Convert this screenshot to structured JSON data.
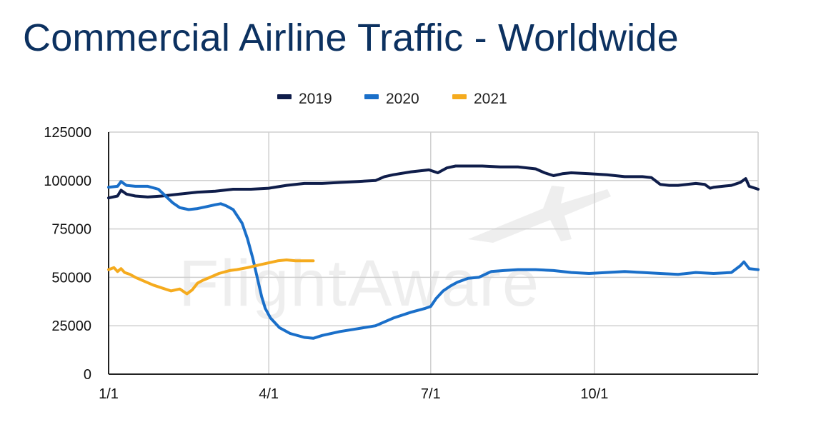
{
  "page": {
    "title": "Commercial Airline Traffic - Worldwide"
  },
  "watermark": "FlightAware",
  "colors": {
    "series2019": "#0f1d4a",
    "series2020": "#1a6fc9",
    "series2021": "#f5ab1e",
    "title": "#0c3160"
  },
  "chart_data": {
    "type": "line",
    "title": "",
    "xlabel": "",
    "ylabel": "",
    "legend_position": "top",
    "grid": true,
    "xlim": [
      0,
      365
    ],
    "ylim": [
      0,
      125000
    ],
    "x_ticks": [
      {
        "x": 0,
        "label": "1/1"
      },
      {
        "x": 90,
        "label": "4/1"
      },
      {
        "x": 181,
        "label": "7/1"
      },
      {
        "x": 273,
        "label": "10/1"
      }
    ],
    "y_ticks": [
      {
        "y": 0,
        "label": "0"
      },
      {
        "y": 25000,
        "label": "25000"
      },
      {
        "y": 50000,
        "label": "50000"
      },
      {
        "y": 75000,
        "label": "75000"
      },
      {
        "y": 100000,
        "label": "100000"
      },
      {
        "y": 125000,
        "label": "125000"
      }
    ],
    "series": [
      {
        "name": "2019",
        "x": [
          0,
          5,
          7,
          10,
          15,
          22,
          30,
          40,
          50,
          60,
          70,
          80,
          90,
          100,
          110,
          120,
          130,
          140,
          150,
          155,
          160,
          170,
          180,
          185,
          190,
          195,
          200,
          210,
          220,
          230,
          240,
          245,
          250,
          255,
          260,
          270,
          280,
          290,
          300,
          305,
          310,
          315,
          320,
          325,
          330,
          335,
          338,
          340,
          345,
          350,
          355,
          358,
          360,
          365
        ],
        "values": [
          91000,
          92000,
          95000,
          93000,
          92000,
          91500,
          92000,
          93000,
          94000,
          94500,
          95500,
          95500,
          96000,
          97500,
          98500,
          98500,
          99000,
          99500,
          100000,
          102000,
          103000,
          104500,
          105500,
          104000,
          106500,
          107500,
          107500,
          107500,
          107000,
          107000,
          106000,
          104000,
          102500,
          103500,
          104000,
          103500,
          103000,
          102000,
          102000,
          101500,
          98000,
          97500,
          97500,
          98000,
          98500,
          98000,
          96000,
          96500,
          97000,
          97500,
          99000,
          101000,
          97000,
          95500
        ]
      },
      {
        "name": "2020",
        "x": [
          0,
          5,
          7,
          10,
          15,
          22,
          28,
          32,
          36,
          40,
          45,
          50,
          55,
          60,
          63,
          66,
          70,
          75,
          78,
          81,
          84,
          86,
          88,
          91,
          96,
          102,
          110,
          115,
          120,
          130,
          140,
          150,
          160,
          170,
          178,
          181,
          184,
          188,
          192,
          196,
          202,
          208,
          215,
          222,
          230,
          240,
          250,
          260,
          270,
          280,
          290,
          300,
          310,
          320,
          330,
          340,
          350,
          355,
          357,
          360,
          365
        ],
        "values": [
          96500,
          97000,
          99500,
          97500,
          97000,
          97000,
          95500,
          92000,
          88500,
          86000,
          85000,
          85500,
          86500,
          87500,
          88000,
          87000,
          85000,
          78000,
          70000,
          60000,
          48000,
          40000,
          34000,
          29000,
          24000,
          21000,
          19000,
          18500,
          20000,
          22000,
          23500,
          25000,
          29000,
          32000,
          34000,
          35000,
          39000,
          43000,
          45500,
          47500,
          49500,
          50000,
          53000,
          53500,
          54000,
          54000,
          53500,
          52500,
          52000,
          52500,
          53000,
          52500,
          52000,
          51500,
          52500,
          52000,
          52500,
          56000,
          58000,
          54500,
          54000
        ]
      },
      {
        "name": "2021",
        "x": [
          0,
          3,
          5,
          7,
          9,
          12,
          15,
          20,
          25,
          30,
          35,
          40,
          44,
          47,
          50,
          53,
          57,
          62,
          68,
          72,
          78,
          85,
          90,
          95,
          100,
          105,
          110,
          115
        ],
        "values": [
          54000,
          55000,
          53000,
          54500,
          52500,
          51500,
          50000,
          48000,
          46000,
          44500,
          43000,
          44000,
          41500,
          43500,
          47000,
          48500,
          50000,
          52000,
          53500,
          54000,
          55000,
          56500,
          57500,
          58500,
          59000,
          58500,
          58500,
          58500
        ]
      }
    ]
  }
}
